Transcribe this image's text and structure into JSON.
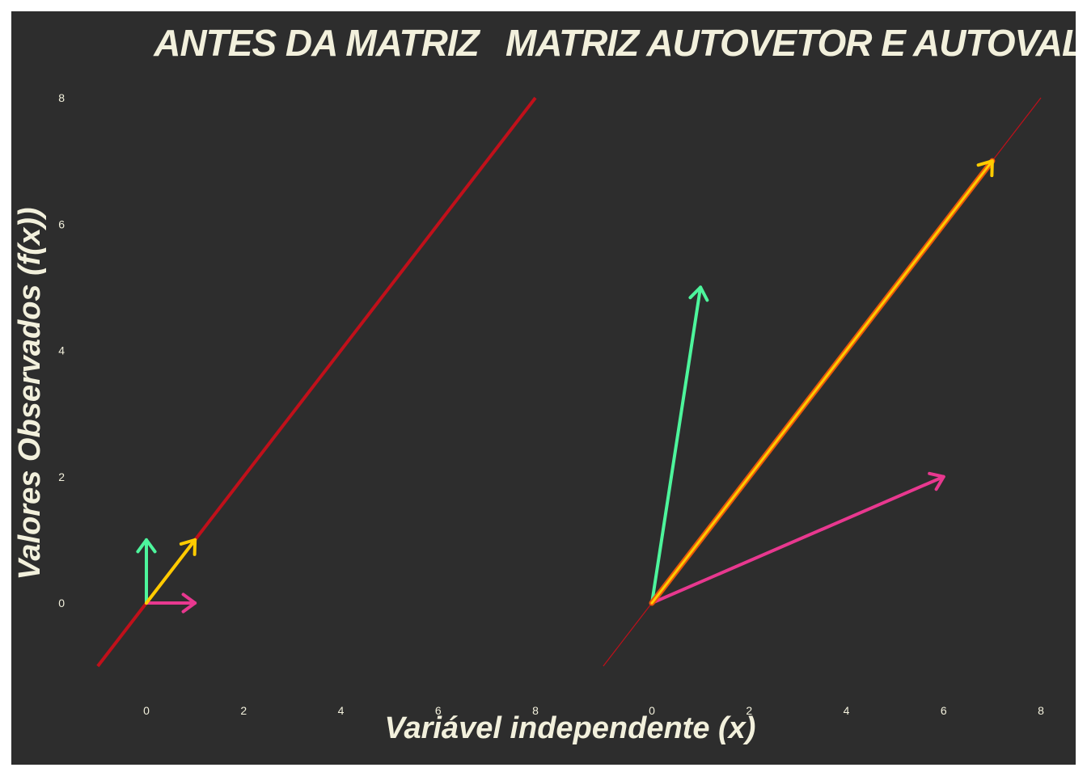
{
  "colors": {
    "background": "#2d2d2d",
    "text": "#f2f0dc",
    "line": "#c0101a",
    "vector_x": "#e8388f",
    "vector_y": "#4df59c",
    "vector_diag": "#ffcc00",
    "vector_diag_outline": "#e8560c"
  },
  "xlabel": "Variável independente (x)",
  "ylabel": "Valores Observados (f(x))",
  "chart_data": [
    {
      "type": "line",
      "title": "ANTES DA MATRIZ",
      "xlim": [
        -1,
        8
      ],
      "ylim": [
        -1,
        8
      ],
      "xticks": [
        0,
        2,
        4,
        6,
        8
      ],
      "yticks": [
        0,
        2,
        4,
        6,
        8
      ],
      "grid": false,
      "line": {
        "x": [
          -1,
          8
        ],
        "y": [
          -1,
          8
        ],
        "color": "#c0101a"
      },
      "vectors": [
        {
          "from": [
            0,
            0
          ],
          "to": [
            1,
            0
          ],
          "color": "#e8388f"
        },
        {
          "from": [
            0,
            0
          ],
          "to": [
            0,
            1
          ],
          "color": "#4df59c"
        },
        {
          "from": [
            0,
            0
          ],
          "to": [
            1,
            1
          ],
          "color": "#ffcc00"
        }
      ]
    },
    {
      "type": "line",
      "title": "MATRIZ AUTOVETOR E AUTOVALOR",
      "xlim": [
        -1,
        8
      ],
      "ylim": [
        -1,
        8
      ],
      "xticks": [
        0,
        2,
        4,
        6,
        8
      ],
      "yticks": [],
      "grid": false,
      "line": {
        "x": [
          -1,
          8
        ],
        "y": [
          -1,
          8
        ],
        "color": "#c0101a"
      },
      "vectors": [
        {
          "from": [
            0,
            0
          ],
          "to": [
            6,
            2
          ],
          "color": "#e8388f"
        },
        {
          "from": [
            0,
            0
          ],
          "to": [
            1,
            5
          ],
          "color": "#4df59c"
        },
        {
          "from": [
            0,
            0
          ],
          "to": [
            7,
            7
          ],
          "color": "#ffcc00"
        }
      ]
    }
  ]
}
